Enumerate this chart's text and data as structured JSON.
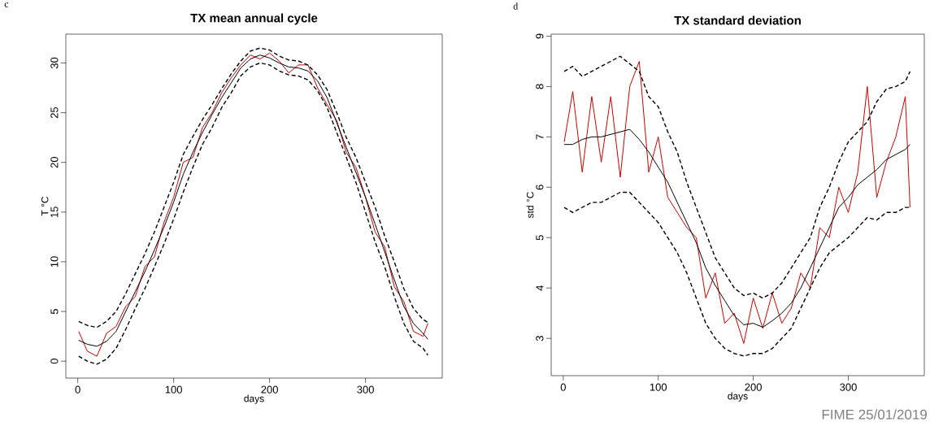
{
  "chart_data": [
    {
      "type": "line",
      "title": "TX mean annual cycle",
      "xlabel": "days",
      "ylabel": "T °C",
      "annotations": [
        "c"
      ],
      "x": [
        1,
        10,
        20,
        30,
        40,
        50,
        60,
        70,
        80,
        90,
        100,
        110,
        120,
        130,
        140,
        150,
        160,
        170,
        180,
        190,
        200,
        210,
        220,
        230,
        240,
        250,
        260,
        270,
        280,
        290,
        300,
        310,
        320,
        330,
        340,
        350,
        360,
        365
      ],
      "xlim": [
        -12.4,
        380
      ],
      "ylim": [
        -1.7,
        32.9
      ],
      "xticks": [
        0,
        100,
        200,
        300
      ],
      "yticks": [
        0,
        5,
        10,
        15,
        20,
        25,
        30
      ],
      "series": [
        {
          "color": "#cc0000",
          "line_style": "solid",
          "values": [
            3.0,
            1.0,
            0.5,
            2.8,
            3.5,
            5.5,
            6.5,
            9.5,
            10.5,
            14.0,
            16.5,
            20.0,
            20.5,
            23.5,
            25.0,
            27.0,
            28.5,
            29.8,
            30.8,
            30.4,
            31.0,
            30.2,
            29.0,
            29.8,
            29.8,
            27.5,
            25.8,
            24.2,
            21.0,
            19.5,
            16.5,
            13.0,
            11.5,
            7.5,
            6.0,
            3.0,
            2.5,
            3.8
          ]
        },
        {
          "color": "#000000",
          "line_style": "dashed",
          "values": [
            4.0,
            3.6,
            3.4,
            4.0,
            5.0,
            6.8,
            8.8,
            10.8,
            13.0,
            15.5,
            18.0,
            20.8,
            22.6,
            24.3,
            25.8,
            27.4,
            28.9,
            30.2,
            31.2,
            31.5,
            31.3,
            30.7,
            30.3,
            30.2,
            29.8,
            28.8,
            27.3,
            25.0,
            22.5,
            20.5,
            18.0,
            15.5,
            12.6,
            10.0,
            7.3,
            5.3,
            4.2,
            3.9
          ]
        },
        {
          "color": "#000000",
          "line_style": "dashed",
          "values": [
            0.5,
            0.0,
            -0.3,
            0.2,
            1.3,
            3.2,
            5.3,
            7.3,
            9.5,
            11.8,
            14.3,
            17.0,
            19.5,
            21.8,
            23.5,
            25.5,
            27.0,
            28.7,
            29.6,
            30.0,
            29.8,
            29.2,
            28.8,
            28.7,
            28.3,
            27.2,
            25.5,
            23.0,
            20.5,
            18.0,
            15.0,
            12.0,
            9.5,
            6.5,
            3.8,
            2.0,
            1.3,
            0.6
          ]
        },
        {
          "color": "#000000",
          "line_style": "solid",
          "values": [
            2.1,
            1.7,
            1.5,
            2.0,
            3.0,
            5.0,
            7.0,
            9.0,
            11.2,
            13.5,
            16.0,
            18.8,
            21.0,
            23.0,
            24.8,
            26.5,
            28.0,
            29.5,
            30.4,
            30.8,
            30.5,
            30.0,
            29.6,
            29.5,
            29.2,
            28.2,
            26.5,
            24.0,
            21.5,
            19.0,
            16.5,
            13.8,
            11.0,
            8.2,
            5.5,
            3.8,
            2.8,
            2.2
          ]
        }
      ]
    },
    {
      "type": "line",
      "title": "TX standard deviation",
      "xlabel": "days",
      "ylabel": "std °C",
      "annotations": [
        "d",
        "FIME 25/01/2019"
      ],
      "x": [
        1,
        10,
        20,
        30,
        40,
        50,
        60,
        70,
        80,
        90,
        100,
        110,
        120,
        130,
        140,
        150,
        160,
        170,
        180,
        190,
        200,
        210,
        220,
        230,
        240,
        250,
        260,
        270,
        280,
        290,
        300,
        310,
        320,
        330,
        340,
        350,
        360,
        365
      ],
      "xlim": [
        -12.7,
        380
      ],
      "ylim": [
        2.26,
        9.04
      ],
      "xticks": [
        0,
        100,
        200,
        300
      ],
      "yticks": [
        3,
        4,
        5,
        6,
        7,
        8,
        9
      ],
      "series": [
        {
          "color": "#cc0000",
          "line_style": "solid",
          "values": [
            6.9,
            7.9,
            6.3,
            7.8,
            6.5,
            7.8,
            6.2,
            8.0,
            8.5,
            6.3,
            7.0,
            5.8,
            5.5,
            5.2,
            5.0,
            3.8,
            4.3,
            3.3,
            3.5,
            2.9,
            3.8,
            3.2,
            3.9,
            3.3,
            3.6,
            4.3,
            4.0,
            5.2,
            5.0,
            6.0,
            5.5,
            6.3,
            8.0,
            5.8,
            6.5,
            7.0,
            7.8,
            5.6
          ]
        },
        {
          "color": "#000000",
          "line_style": "dashed",
          "values": [
            8.3,
            8.4,
            8.2,
            8.3,
            8.4,
            8.5,
            8.6,
            8.45,
            8.3,
            7.8,
            7.6,
            7.1,
            6.7,
            6.1,
            5.6,
            5.1,
            4.6,
            4.3,
            4.0,
            3.85,
            3.9,
            3.8,
            3.9,
            4.1,
            4.4,
            4.7,
            5.0,
            5.6,
            6.0,
            6.5,
            6.9,
            7.1,
            7.3,
            7.7,
            7.95,
            8.0,
            8.1,
            8.3
          ]
        },
        {
          "color": "#000000",
          "line_style": "dashed",
          "values": [
            5.6,
            5.5,
            5.6,
            5.7,
            5.7,
            5.8,
            5.9,
            5.9,
            5.7,
            5.5,
            5.3,
            5.0,
            4.7,
            4.3,
            3.8,
            3.3,
            3.0,
            2.8,
            2.7,
            2.65,
            2.7,
            2.7,
            2.8,
            3.0,
            3.2,
            3.6,
            4.0,
            4.4,
            4.7,
            4.85,
            5.0,
            5.2,
            5.4,
            5.35,
            5.5,
            5.5,
            5.6,
            5.6
          ]
        },
        {
          "color": "#000000",
          "line_style": "solid",
          "values": [
            6.85,
            6.85,
            6.95,
            7.0,
            7.0,
            7.05,
            7.1,
            7.15,
            6.95,
            6.7,
            6.4,
            6.1,
            5.7,
            5.3,
            4.9,
            4.4,
            4.05,
            3.75,
            3.45,
            3.27,
            3.3,
            3.22,
            3.35,
            3.5,
            3.7,
            4.0,
            4.4,
            4.8,
            5.2,
            5.6,
            5.8,
            6.05,
            6.2,
            6.35,
            6.55,
            6.65,
            6.75,
            6.85
          ]
        }
      ]
    }
  ]
}
